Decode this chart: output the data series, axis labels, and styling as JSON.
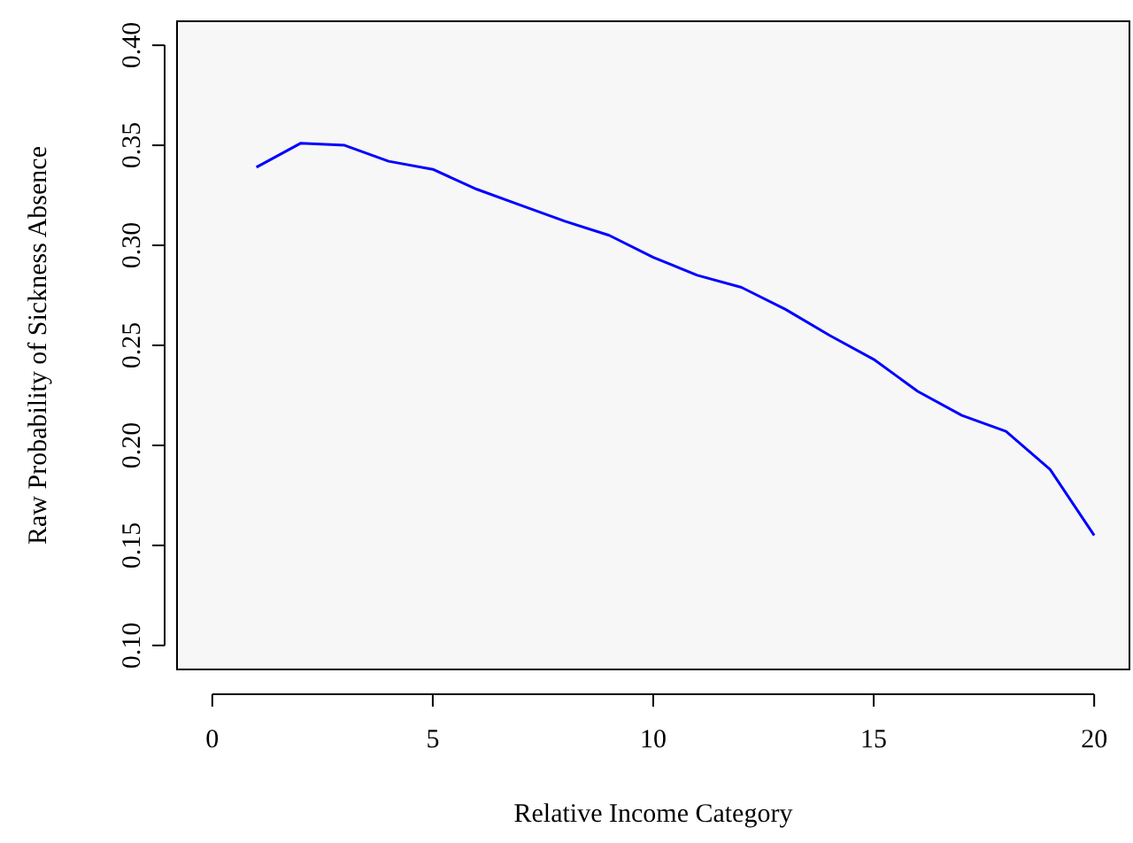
{
  "chart_data": {
    "type": "line",
    "xlabel": "Relative Income Category",
    "ylabel": "Raw Probability of Sickness Absence",
    "x": [
      1,
      2,
      3,
      4,
      5,
      6,
      7,
      8,
      9,
      10,
      11,
      12,
      13,
      14,
      15,
      16,
      17,
      18,
      19,
      20
    ],
    "series": [
      {
        "color": "#0000ff",
        "values": [
          0.339,
          0.351,
          0.35,
          0.342,
          0.338,
          0.328,
          0.32,
          0.312,
          0.305,
          0.294,
          0.285,
          0.279,
          0.268,
          0.255,
          0.243,
          0.227,
          0.215,
          0.207,
          0.188,
          0.155
        ]
      }
    ],
    "xlim": [
      -0.8,
      20.8
    ],
    "ylim": [
      0.088,
      0.412
    ],
    "xticks": [
      0,
      5,
      10,
      15,
      20
    ],
    "yticks": [
      {
        "value": 0.1,
        "label": "0.10"
      },
      {
        "value": 0.15,
        "label": "0.15"
      },
      {
        "value": 0.2,
        "label": "0.20"
      },
      {
        "value": 0.25,
        "label": "0.25"
      },
      {
        "value": 0.3,
        "label": "0.30"
      },
      {
        "value": 0.35,
        "label": "0.35"
      },
      {
        "value": 0.4,
        "label": "0.40"
      }
    ],
    "grid": false,
    "marker": "none",
    "line_style": "solid"
  }
}
